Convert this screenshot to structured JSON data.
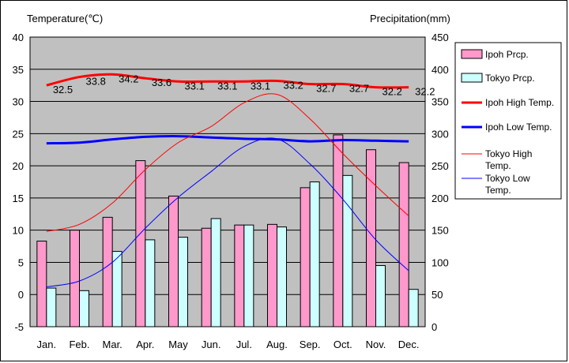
{
  "chart_data": {
    "type": "bar+line",
    "categories": [
      "Jan.",
      "Feb.",
      "Mar.",
      "Apr.",
      "May",
      "Jun.",
      "Jul.",
      "Aug.",
      "Sep.",
      "Oct.",
      "Nov.",
      "Dec."
    ],
    "ylabel_left": "Temperature(℃)",
    "ylabel_right": "Precipitation(mm)",
    "ylim_left": [
      -5,
      40
    ],
    "ylim_right": [
      0,
      450
    ],
    "yticks_left": [
      -5,
      0,
      5,
      10,
      15,
      20,
      25,
      30,
      35,
      40
    ],
    "yticks_right": [
      0,
      50,
      100,
      150,
      200,
      250,
      300,
      350,
      400,
      450
    ],
    "grid": true,
    "legend_position": "right",
    "series": [
      {
        "name": "Ipoh Prcp.",
        "kind": "bar",
        "axis": "right",
        "color": "#ff99cc",
        "values": [
          133,
          150,
          170,
          258,
          203,
          153,
          158,
          159,
          216,
          298,
          275,
          255
        ]
      },
      {
        "name": "Tokyo Prcp.",
        "kind": "bar",
        "axis": "right",
        "color": "#ccffff",
        "values": [
          60,
          56,
          117,
          135,
          139,
          168,
          158,
          155,
          225,
          235,
          95,
          58
        ]
      },
      {
        "name": "Ipoh High Temp.",
        "kind": "line",
        "axis": "left",
        "color": "#ff0000",
        "width": 3,
        "values": [
          32.5,
          33.8,
          34.2,
          33.6,
          33.1,
          33.1,
          33.1,
          33.2,
          32.7,
          32.7,
          32.2,
          32.2
        ],
        "labels": [
          "32.5",
          "33.8",
          "34.2",
          "33.6",
          "33.1",
          "33.1",
          "33.1",
          "33.2",
          "32.7",
          "32.7",
          "32.2",
          "32.2"
        ]
      },
      {
        "name": "Ipoh Low Temp.",
        "kind": "line",
        "axis": "left",
        "color": "#0000ff",
        "width": 3,
        "values": [
          23.5,
          23.6,
          24.1,
          24.5,
          24.6,
          24.4,
          24.2,
          24.1,
          23.8,
          24.0,
          23.9,
          23.8
        ]
      },
      {
        "name": "Tokyo High Temp.",
        "kind": "line",
        "axis": "left",
        "color": "#ff0000",
        "width": 1,
        "values": [
          9.8,
          10.9,
          14.2,
          19.4,
          23.6,
          26.1,
          29.8,
          31.1,
          27.3,
          21.9,
          16.9,
          12.2
        ]
      },
      {
        "name": "Tokyo Low Temp.",
        "kind": "line",
        "axis": "left",
        "color": "#0000ff",
        "width": 1,
        "values": [
          1.2,
          2.1,
          5.0,
          10.3,
          15.1,
          19.1,
          23.0,
          24.2,
          20.3,
          14.8,
          8.5,
          3.7
        ]
      }
    ],
    "legend": {
      "ipoh_prcp": "Ipoh Prcp.",
      "tokyo_prcp": "Tokyo Prcp.",
      "ipoh_high": "Ipoh High Temp.",
      "ipoh_low": "Ipoh Low Temp.",
      "tokyo_high_1": "Tokyo High",
      "tokyo_high_2": "Temp.",
      "tokyo_low_1": "Tokyo Low",
      "tokyo_low_2": "Temp."
    }
  }
}
